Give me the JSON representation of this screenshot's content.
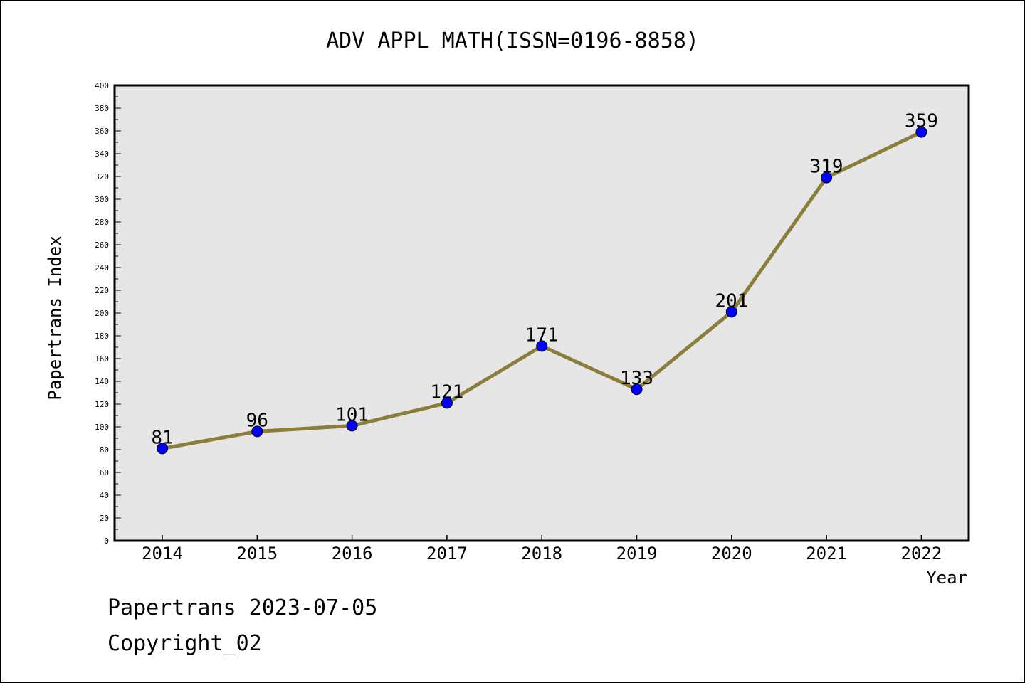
{
  "chart_data": {
    "type": "line",
    "title": "ADV APPL MATH(ISSN=0196-8858)",
    "xlabel": "Year",
    "ylabel": "Papertrans Index",
    "categories": [
      "2014",
      "2015",
      "2016",
      "2017",
      "2018",
      "2019",
      "2020",
      "2021",
      "2022"
    ],
    "series": [
      {
        "values": [
          81,
          96,
          101,
          121,
          171,
          133,
          201,
          319,
          359
        ]
      }
    ],
    "ylim": [
      0,
      400
    ],
    "ytick_step": 20,
    "grid": false,
    "colors": {
      "line": "#8b7d3a",
      "marker": "#0000ff",
      "plot_bg": "#e6e6e6"
    }
  },
  "footer": {
    "line1": "Papertrans 2023-07-05",
    "line2": "Copyright_02"
  }
}
